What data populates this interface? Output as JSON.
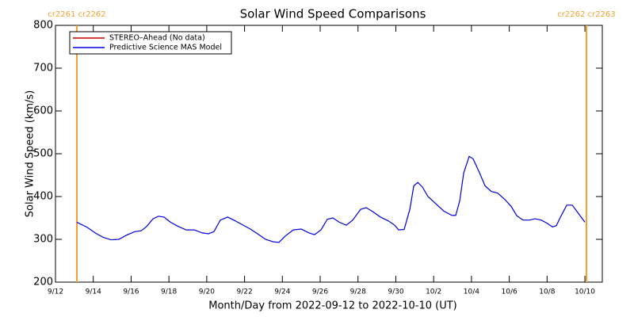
{
  "chart_data": {
    "type": "line",
    "title": "Solar Wind Speed Comparisons",
    "x_label": "Month/Day from 2022-09-12 to 2022-10-10 (UT)",
    "y_label": "Solar Wind Speed (km/s)",
    "x": [
      1.13,
      1.68,
      2.1,
      2.51,
      2.93,
      3.35,
      3.77,
      4.19,
      4.53,
      4.82,
      5.16,
      5.45,
      5.74,
      6.08,
      6.5,
      6.92,
      7.34,
      7.76,
      8.09,
      8.38,
      8.72,
      9.1,
      9.43,
      9.85,
      10.27,
      10.69,
      11.11,
      11.53,
      11.82,
      12.16,
      12.58,
      13.0,
      13.41,
      13.7,
      14.04,
      14.38,
      14.67,
      15.01,
      15.38,
      15.72,
      16.14,
      16.43,
      16.77,
      17.19,
      17.61,
      17.94,
      18.15,
      18.44,
      18.74,
      18.95,
      19.16,
      19.41,
      19.7,
      20.12,
      20.54,
      20.96,
      21.17,
      21.38,
      21.59,
      21.88,
      22.09,
      22.43,
      22.72,
      23.05,
      23.39,
      23.77,
      24.1,
      24.4,
      24.73,
      25.07,
      25.36,
      25.69,
      25.99,
      26.28,
      26.49,
      26.74,
      27.04,
      27.33,
      27.58,
      28.0
    ],
    "series": [
      {
        "name": "STEREO–Ahead (No data)",
        "color": "#c00000",
        "values": [
          null,
          null,
          null,
          null,
          null,
          null,
          null,
          null,
          null,
          null,
          null,
          null,
          null,
          null,
          null,
          null,
          null,
          null,
          null,
          null,
          null,
          null,
          null,
          null,
          null,
          null,
          null,
          null,
          null,
          null,
          null,
          null,
          null,
          null,
          null,
          null,
          null,
          null,
          null,
          null,
          null,
          null,
          null,
          null,
          null,
          null,
          null,
          null,
          null,
          null,
          null,
          null,
          null,
          null,
          null,
          null,
          null,
          null,
          null,
          null,
          null,
          null,
          null,
          null,
          null,
          null,
          null,
          null,
          null,
          null,
          null,
          null,
          null,
          null,
          null,
          null,
          null,
          null,
          null,
          null
        ]
      },
      {
        "name": "Predictive Science MAS Model",
        "color": "#0000e0",
        "values": [
          340,
          328,
          315,
          305,
          299,
          300,
          310,
          318,
          320,
          330,
          348,
          354,
          352,
          340,
          330,
          322,
          322,
          315,
          313,
          318,
          345,
          352,
          345,
          335,
          325,
          313,
          300,
          294,
          293,
          308,
          322,
          324,
          315,
          311,
          322,
          347,
          350,
          340,
          333,
          345,
          370,
          374,
          365,
          352,
          343,
          333,
          322,
          323,
          370,
          425,
          433,
          422,
          400,
          383,
          366,
          356,
          356,
          390,
          455,
          494,
          488,
          455,
          425,
          412,
          408,
          393,
          377,
          355,
          345,
          345,
          348,
          345,
          338,
          329,
          332,
          355,
          380,
          380,
          365,
          340
        ]
      }
    ],
    "xlim": [
      0,
      28.92
    ],
    "ylim": [
      200,
      800
    ],
    "xticks": [
      {
        "value": 0,
        "label": "9/12"
      },
      {
        "value": 2,
        "label": "9/14"
      },
      {
        "value": 4,
        "label": "9/16"
      },
      {
        "value": 6,
        "label": "9/18"
      },
      {
        "value": 8,
        "label": "9/20"
      },
      {
        "value": 10,
        "label": "9/22"
      },
      {
        "value": 12,
        "label": "9/24"
      },
      {
        "value": 14,
        "label": "9/26"
      },
      {
        "value": 16,
        "label": "9/28"
      },
      {
        "value": 18,
        "label": "9/30"
      },
      {
        "value": 20,
        "label": "10/2"
      },
      {
        "value": 22,
        "label": "10/4"
      },
      {
        "value": 24,
        "label": "10/6"
      },
      {
        "value": 26,
        "label": "10/8"
      },
      {
        "value": 28,
        "label": "10/10"
      }
    ],
    "yticks": [
      200,
      300,
      400,
      500,
      600,
      700,
      800
    ],
    "markers": [
      {
        "x": 1.13,
        "label": "cr2261 cr2262"
      },
      {
        "x": 28.08,
        "label": "cr2262 cr2263"
      }
    ],
    "marker_color": "#f0a030",
    "legend": "upper-left"
  }
}
